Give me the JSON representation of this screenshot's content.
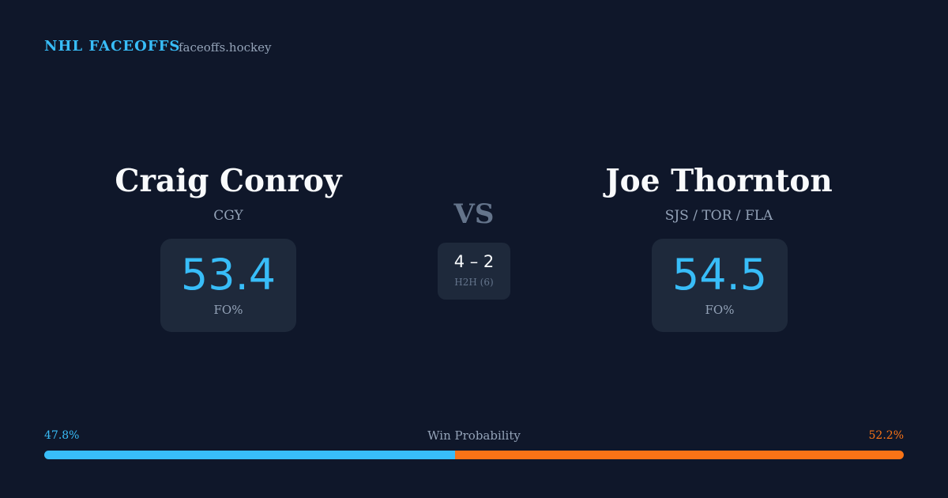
{
  "header": {
    "brand": "NHL FACEOFFS",
    "site": "faceoffs.hockey"
  },
  "players": [
    {
      "name": "Craig Conroy",
      "team": "CGY",
      "fo_value": 53.4,
      "fo_label": "FO%"
    },
    {
      "name": "Joe Thornton",
      "team": "SJS / TOR / FLA",
      "fo_value": 54.5,
      "fo_label": "FO%"
    }
  ],
  "vs": "VS",
  "h2h": {
    "score": "4 – 2",
    "label": "H2H (6)"
  },
  "win_probability": {
    "label": "Win Probability",
    "values": [
      47.8,
      52.2
    ],
    "value_labels": [
      "47.8%",
      "52.2%"
    ],
    "colors": [
      "#38bdf8",
      "#f97316"
    ]
  }
}
